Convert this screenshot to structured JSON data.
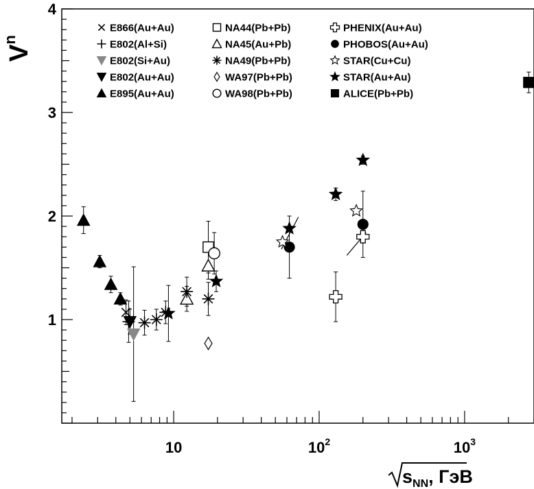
{
  "chart_data": {
    "type": "scatter",
    "title": "",
    "xlabel": "s_NN, ГэВ",
    "xlabel_parts": {
      "main": "s",
      "sub": "NN",
      "suffix": ", ГэВ"
    },
    "ylabel": "V^n",
    "ylabel_parts": {
      "main": "V",
      "sup": "n"
    },
    "x_scale": "log",
    "xlim": [
      1.7,
      3000
    ],
    "ylim": [
      0,
      4
    ],
    "x_tick_labels": [
      {
        "value": 10,
        "base": "10",
        "exp": ""
      },
      {
        "value": 100,
        "base": "10",
        "exp": "2"
      },
      {
        "value": 1000,
        "base": "10",
        "exp": "3"
      }
    ],
    "y_tick_labels": [
      "1",
      "2",
      "3",
      "4"
    ],
    "legend_position": "top",
    "series": [
      {
        "name": "E866(Au+Au)",
        "marker": "x",
        "color": "#000000",
        "points": [
          [
            4.7,
            1.07,
            0.12
          ]
        ]
      },
      {
        "name": "E802(Al+Si)",
        "marker": "plus",
        "color": "#000000",
        "points": [
          [
            4.9,
            0.98,
            0.2
          ]
        ]
      },
      {
        "name": "E802(Si+Au)",
        "marker": "tri-down-filled",
        "color": "#888888",
        "points": [
          [
            5.3,
            0.86,
            0.65
          ]
        ]
      },
      {
        "name": "E802(Au+Au)",
        "marker": "tri-down-filled",
        "color": "#000000",
        "points": [
          [
            5.0,
            0.98,
            0.12
          ]
        ]
      },
      {
        "name": "E895(Au+Au)",
        "marker": "tri-up-filled",
        "color": "#000000",
        "points": [
          [
            2.4,
            1.96,
            0.13
          ],
          [
            3.1,
            1.56,
            0.06
          ],
          [
            3.7,
            1.34,
            0.08
          ],
          [
            4.3,
            1.2,
            0.06
          ]
        ]
      },
      {
        "name": "NA44(Pb+Pb)",
        "marker": "square-open",
        "color": "#000000",
        "points": [
          [
            17.3,
            1.7,
            0.25
          ]
        ]
      },
      {
        "name": "NA45(Au+Pb)",
        "marker": "tri-up-open",
        "color": "#000000",
        "points": [
          [
            12.3,
            1.2,
            0.12
          ],
          [
            17.3,
            1.52,
            0.13
          ]
        ]
      },
      {
        "name": "NA49(Pb+Pb)",
        "marker": "star-asterisk",
        "color": "#000000",
        "points": [
          [
            6.3,
            0.97,
            0.12
          ],
          [
            7.6,
            1.0,
            0.1
          ],
          [
            8.8,
            1.07,
            0.11
          ],
          [
            12.3,
            1.27,
            0.14
          ],
          [
            17.3,
            1.2,
            0.16
          ]
        ]
      },
      {
        "name": "WA97(Pb+Pb)",
        "marker": "diamond-open",
        "color": "#000000",
        "points": [
          [
            17.3,
            0.77,
            0
          ]
        ]
      },
      {
        "name": "WA98(Pb+Pb)",
        "marker": "circle-open",
        "color": "#000000",
        "points": [
          [
            19.0,
            1.64,
            0.2
          ]
        ]
      },
      {
        "name": "PHENIX(Au+Au)",
        "marker": "cross-open",
        "color": "#000000",
        "points": [
          [
            130,
            1.22,
            0.24
          ],
          [
            200,
            1.8,
            0
          ]
        ]
      },
      {
        "name": "PHOBOS(Au+Au)",
        "marker": "circle-filled",
        "color": "#000000",
        "points": [
          [
            62.4,
            1.7,
            0.3
          ],
          [
            200,
            1.92,
            0.32
          ]
        ]
      },
      {
        "name": "STAR(Cu+Cu)",
        "marker": "star-open",
        "color": "#000000",
        "points": [
          [
            56.0,
            1.75,
            0
          ],
          [
            180,
            2.05,
            0
          ]
        ]
      },
      {
        "name": "STAR(Au+Au)",
        "marker": "star-filled",
        "color": "#000000",
        "points": [
          [
            9.2,
            1.06,
            0.27
          ],
          [
            19.6,
            1.37,
            0.1
          ],
          [
            62.4,
            1.88,
            0
          ],
          [
            130,
            2.21,
            0.06
          ],
          [
            200,
            2.54,
            0.04
          ]
        ]
      },
      {
        "name": "ALICE(Pb+Pb)",
        "marker": "square-filled",
        "color": "#000000",
        "points": [
          [
            2760,
            3.29,
            0.1
          ]
        ]
      }
    ],
    "line_segments": [
      [
        [
          55,
          1.68
        ],
        [
          72,
          1.99
        ]
      ],
      [
        [
          155,
          1.62
        ],
        [
          210,
          1.84
        ]
      ]
    ]
  }
}
